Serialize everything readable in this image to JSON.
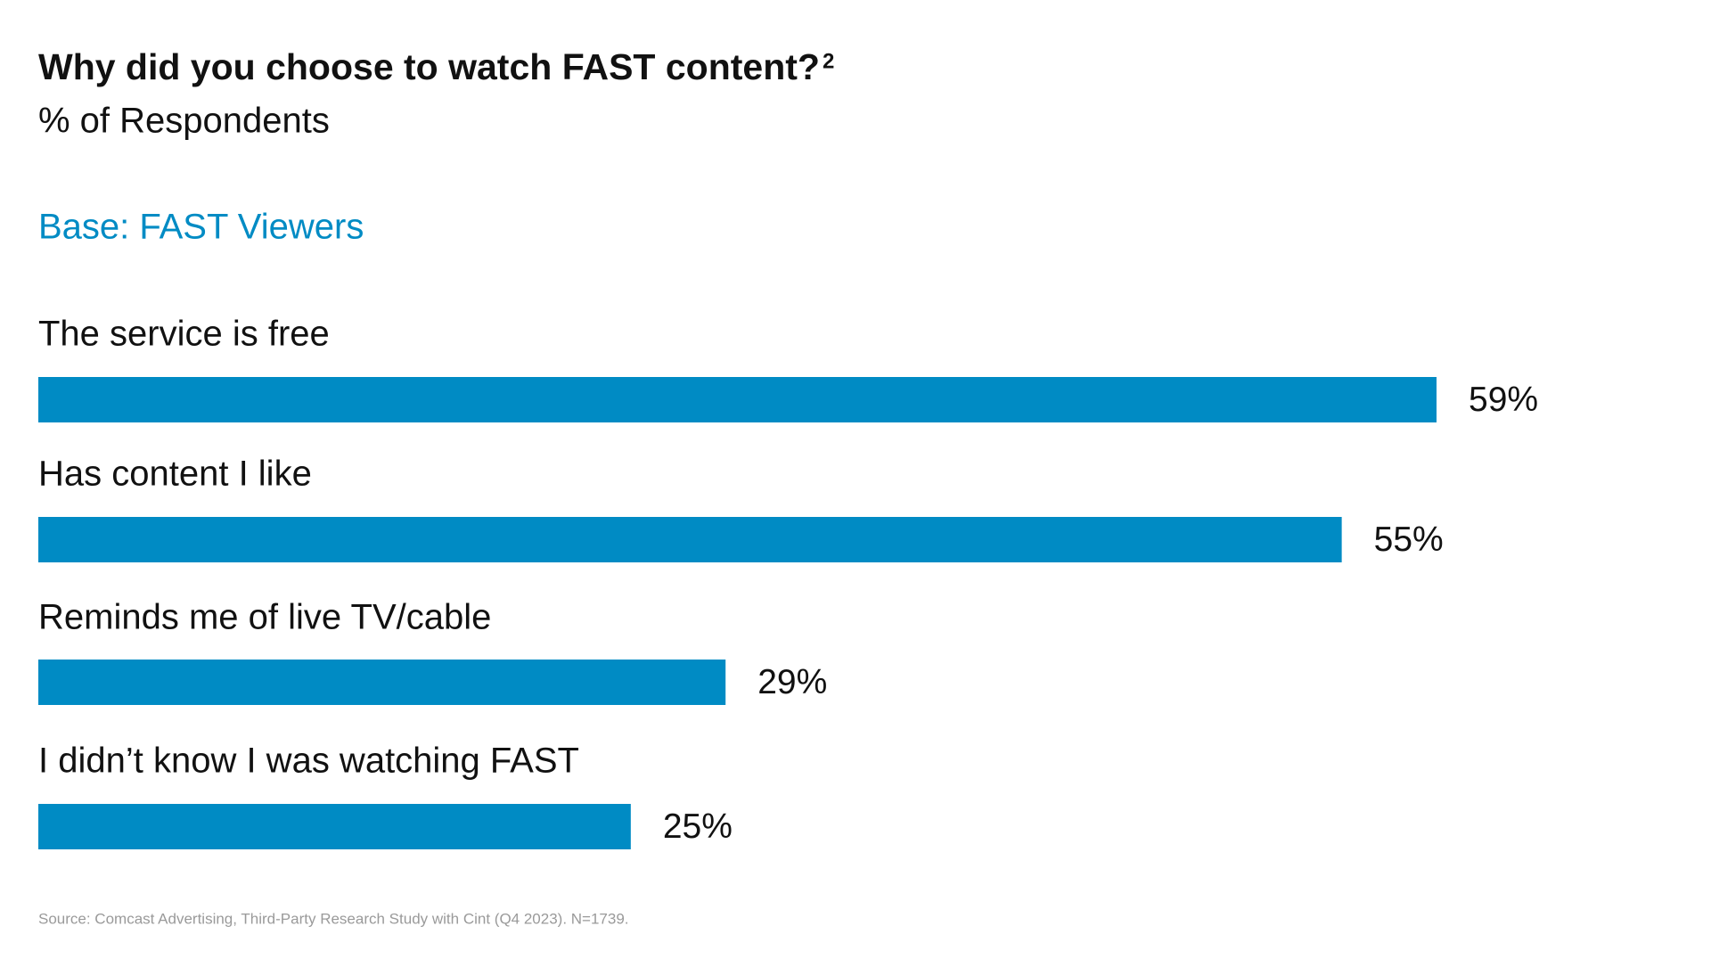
{
  "chart_data": {
    "type": "bar",
    "orientation": "horizontal",
    "title": "Why did you choose to watch FAST content?",
    "title_superscript": "2",
    "subtitle": "% of Respondents",
    "base_note": "Base: FAST Viewers",
    "categories": [
      "The service is free",
      "Has content I like",
      "Reminds me of live TV/cable",
      "I didn’t know I was watching FAST"
    ],
    "values": [
      59,
      55,
      29,
      25
    ],
    "value_labels": [
      "59%",
      "55%",
      "29%",
      "25%"
    ],
    "color": "#008bc4",
    "source": "Source: Comcast Advertising, Third-Party Research Study with Cint (Q4 2023). N=1739."
  }
}
